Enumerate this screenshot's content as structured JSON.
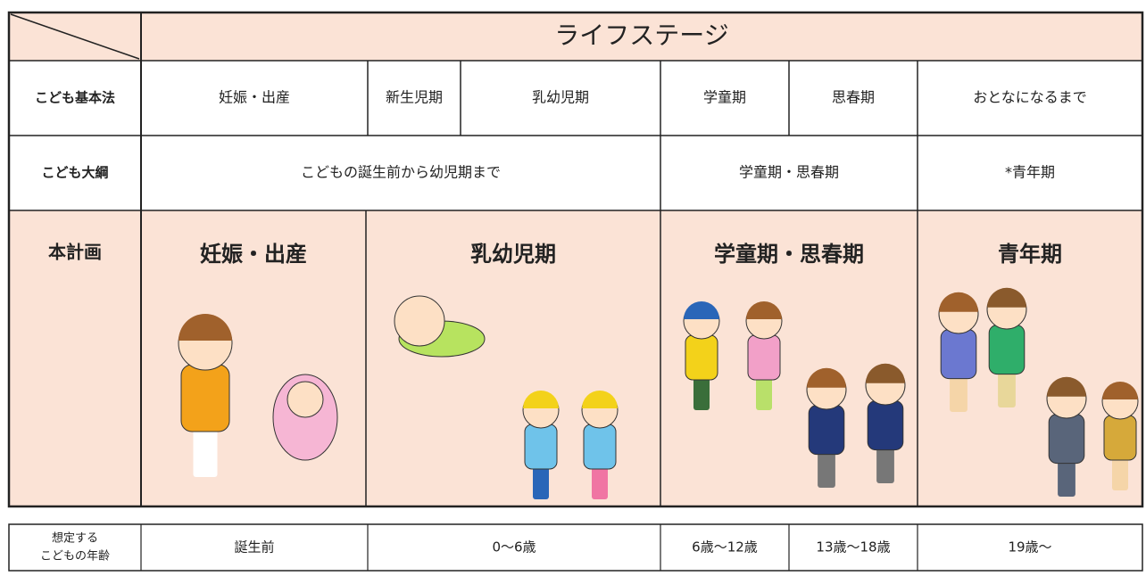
{
  "header": {
    "title": "ライフステージ"
  },
  "rows": [
    {
      "label": "こども基本法",
      "cells": [
        "妊娠・出産",
        "新生児期",
        "乳幼児期",
        "学童期",
        "思春期",
        "おとなになるまで"
      ]
    },
    {
      "label": "こども大綱",
      "cells": [
        "こどもの誕生前から幼児期まで",
        "学童期・思春期",
        "*青年期"
      ]
    },
    {
      "label": "本計画",
      "cells": [
        "妊娠・出産",
        "乳幼児期",
        "学童期・思春期",
        "青年期"
      ]
    }
  ],
  "ages": {
    "label": [
      "想定する",
      "こどもの年齢"
    ],
    "cells": [
      "誕生前",
      "0～6歳",
      "6歳～12歳",
      "13歳～18歳",
      "19歳～"
    ]
  }
}
